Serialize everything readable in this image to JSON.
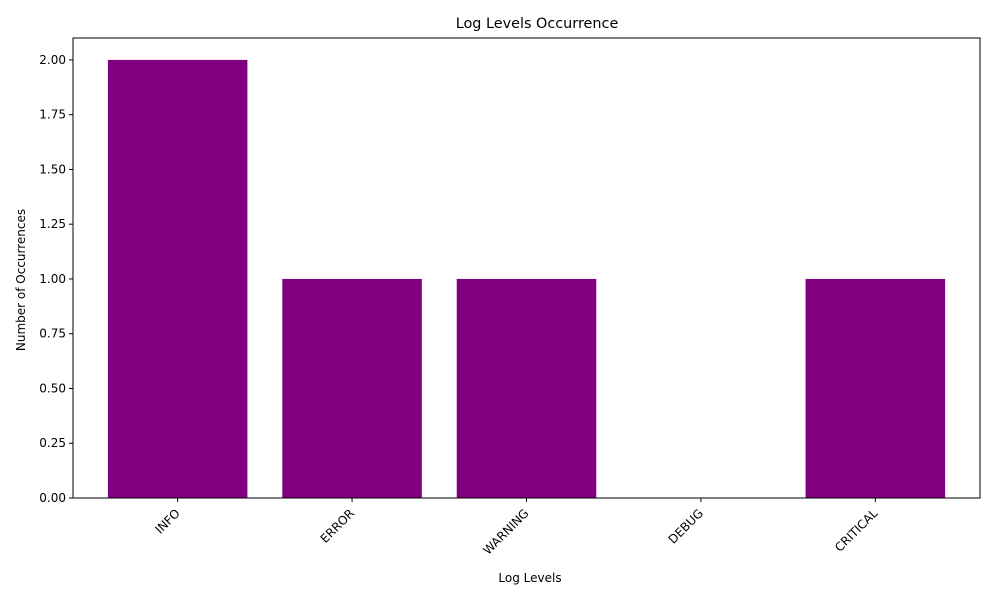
{
  "chart_data": {
    "type": "bar",
    "title": "Log Levels Occurrence",
    "xlabel": "Log Levels",
    "ylabel": "Number of Occurrences",
    "categories": [
      "INFO",
      "ERROR",
      "WARNING",
      "DEBUG",
      "CRITICAL"
    ],
    "values": [
      2,
      1,
      1,
      0,
      1
    ],
    "ylim": [
      0,
      2.1
    ],
    "yticks": [
      "0.00",
      "0.25",
      "0.50",
      "0.75",
      "1.00",
      "1.25",
      "1.50",
      "1.75",
      "2.00"
    ],
    "bar_color": "#800080",
    "grid": false,
    "legend": "none"
  }
}
